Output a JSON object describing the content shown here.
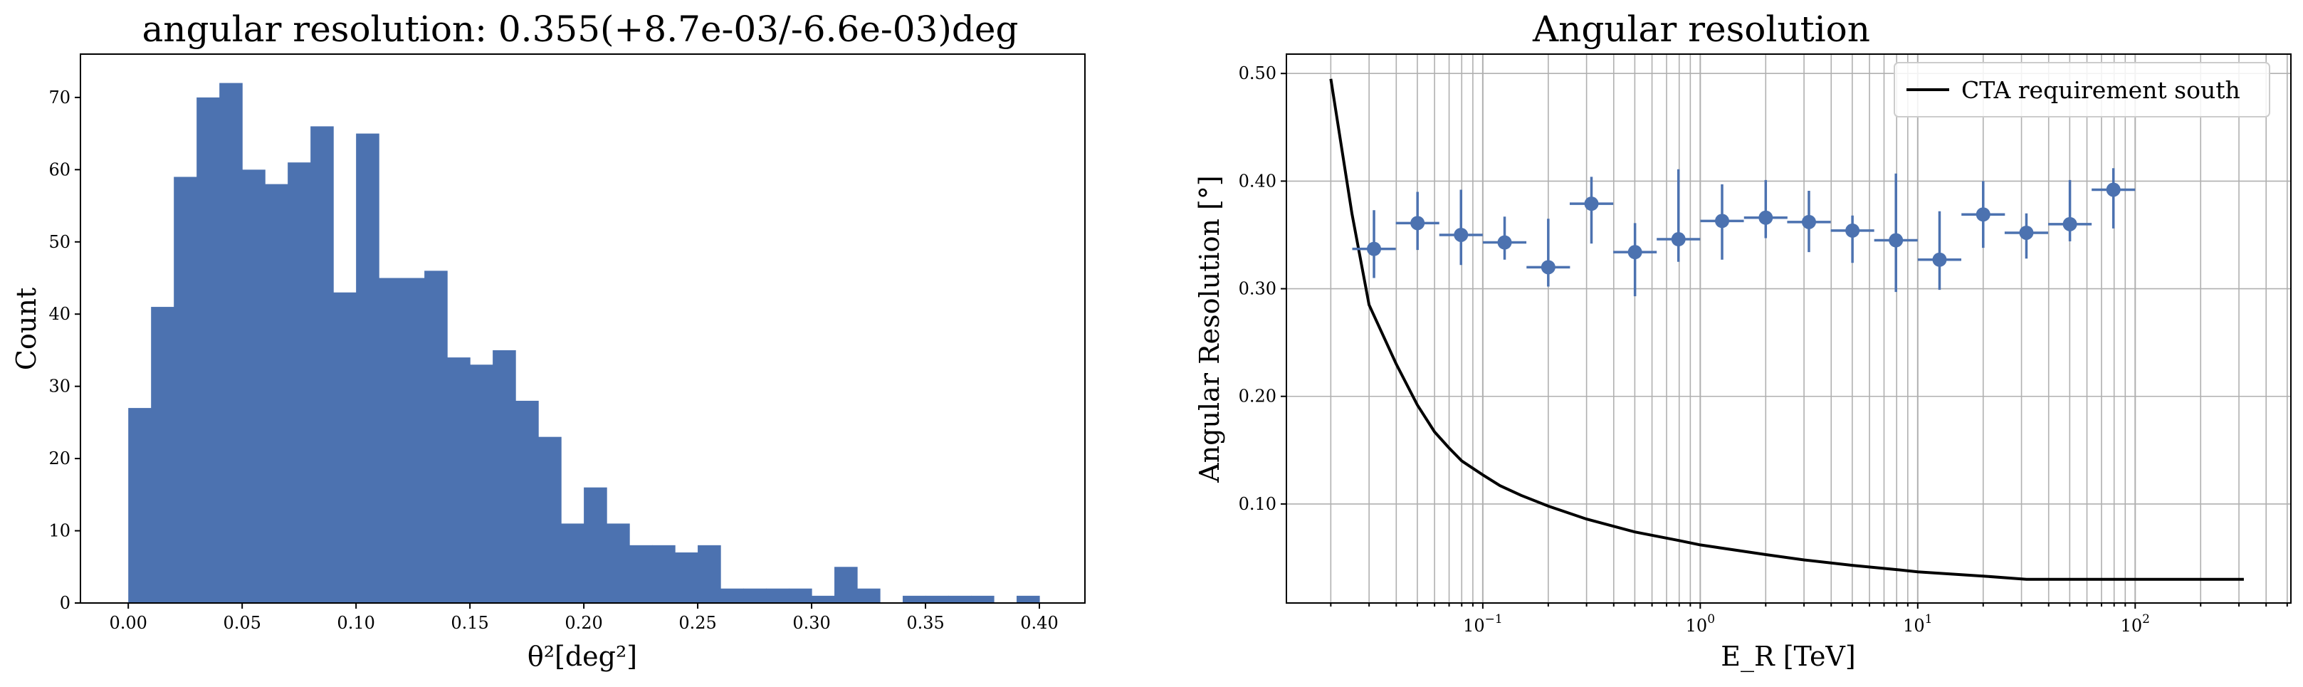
{
  "chart_data": [
    {
      "type": "bar",
      "title": "angular resolution: 0.355(+8.7e-03/-6.6e-03)deg",
      "xlabel": "θ²[deg²]",
      "ylabel": "Count",
      "xlim": [
        -0.021,
        0.42
      ],
      "ylim": [
        0,
        76
      ],
      "bin_width": 0.01,
      "bin_start": 0.0,
      "values": [
        27,
        41,
        59,
        70,
        72,
        60,
        58,
        61,
        66,
        43,
        65,
        45,
        45,
        46,
        34,
        33,
        35,
        28,
        23,
        11,
        16,
        11,
        8,
        8,
        7,
        8,
        2,
        2,
        2,
        2,
        1,
        5,
        2,
        0,
        1,
        1,
        1,
        1,
        0,
        1
      ],
      "xticks": [
        "0.00",
        "0.05",
        "0.10",
        "0.15",
        "0.20",
        "0.25",
        "0.30",
        "0.35",
        "0.40"
      ],
      "yticks": [
        "0",
        "10",
        "20",
        "30",
        "40",
        "50",
        "60",
        "70"
      ],
      "color": "#4c72b0"
    },
    {
      "type": "scatter",
      "title": "Angular resolution",
      "xlabel": "E_R [TeV]",
      "ylabel": "Angular Resolution [°]",
      "xscale": "log",
      "xlim": [
        0.0125,
        520
      ],
      "ylim": [
        0.008,
        0.518
      ],
      "grid": true,
      "legend_placement": "top-right",
      "yticks": [
        "0.10",
        "0.20",
        "0.30",
        "0.40",
        "0.50"
      ],
      "xticks": [
        {
          "base": "10",
          "exp": "−1"
        },
        {
          "base": "10",
          "exp": "0"
        },
        {
          "base": "10",
          "exp": "1"
        },
        {
          "base": "10",
          "exp": "2"
        }
      ],
      "series": [
        {
          "name": "CTA requirement south",
          "kind": "line",
          "color": "#000000",
          "x": [
            0.02,
            0.025,
            0.03,
            0.04,
            0.05,
            0.06,
            0.07,
            0.08,
            0.1,
            0.12,
            0.15,
            0.2,
            0.3,
            0.5,
            0.8,
            1.0,
            2.0,
            3.0,
            5.0,
            8.0,
            10.0,
            20.0,
            31.6,
            50.0,
            100.0,
            200.0,
            316.0
          ],
          "y": [
            0.495,
            0.37,
            0.285,
            0.23,
            0.192,
            0.167,
            0.152,
            0.14,
            0.127,
            0.117,
            0.108,
            0.098,
            0.086,
            0.074,
            0.066,
            0.062,
            0.053,
            0.048,
            0.043,
            0.039,
            0.037,
            0.033,
            0.03,
            0.03,
            0.03,
            0.03,
            0.03
          ]
        },
        {
          "name": "",
          "kind": "errorbar",
          "color": "#4c72b0",
          "x": [
            0.0316,
            0.0501,
            0.0794,
            0.126,
            0.2,
            0.316,
            0.501,
            0.794,
            1.26,
            2.0,
            3.16,
            5.01,
            7.94,
            12.6,
            20.0,
            31.6,
            50.1,
            79.4
          ],
          "y": [
            0.337,
            0.361,
            0.35,
            0.343,
            0.32,
            0.379,
            0.334,
            0.346,
            0.363,
            0.366,
            0.362,
            0.354,
            0.345,
            0.327,
            0.369,
            0.352,
            0.36,
            0.392
          ],
          "yerr_low": [
            0.027,
            0.025,
            0.028,
            0.016,
            0.018,
            0.037,
            0.041,
            0.021,
            0.036,
            0.019,
            0.028,
            0.03,
            0.048,
            0.028,
            0.031,
            0.024,
            0.016,
            0.036
          ],
          "yerr_high": [
            0.036,
            0.029,
            0.042,
            0.024,
            0.045,
            0.025,
            0.027,
            0.065,
            0.034,
            0.035,
            0.029,
            0.014,
            0.062,
            0.045,
            0.031,
            0.018,
            0.041,
            0.02
          ]
        }
      ]
    }
  ]
}
